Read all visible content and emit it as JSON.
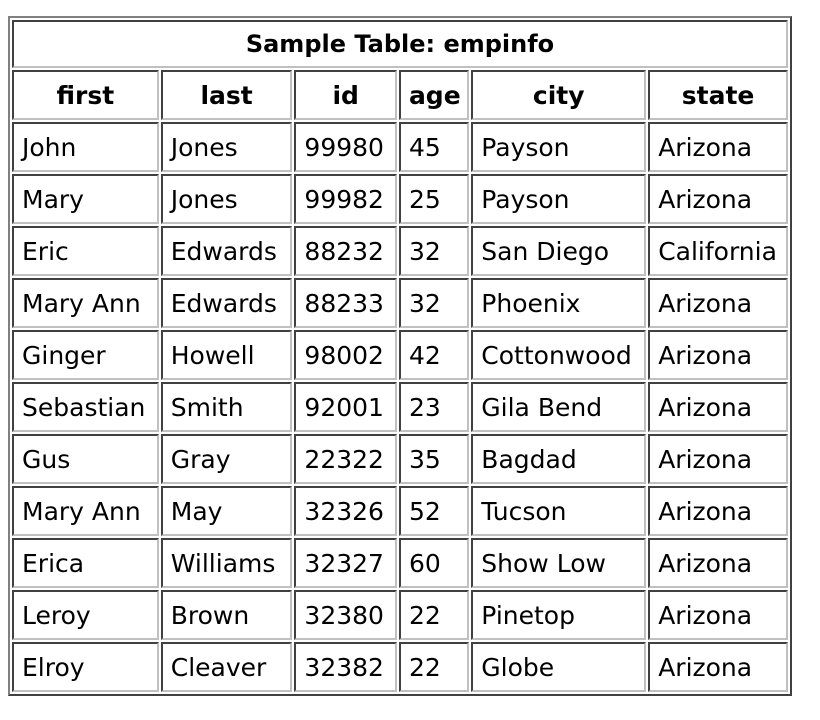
{
  "table": {
    "title": "Sample Table: empinfo",
    "columns": [
      "first",
      "last",
      "id",
      "age",
      "city",
      "state"
    ],
    "rows": [
      [
        "John",
        "Jones",
        "99980",
        "45",
        "Payson",
        "Arizona"
      ],
      [
        "Mary",
        "Jones",
        "99982",
        "25",
        "Payson",
        "Arizona"
      ],
      [
        "Eric",
        "Edwards",
        "88232",
        "32",
        "San Diego",
        "California"
      ],
      [
        "Mary Ann",
        "Edwards",
        "88233",
        "32",
        "Phoenix",
        "Arizona"
      ],
      [
        "Ginger",
        "Howell",
        "98002",
        "42",
        "Cottonwood",
        "Arizona"
      ],
      [
        "Sebastian",
        "Smith",
        "92001",
        "23",
        "Gila Bend",
        "Arizona"
      ],
      [
        "Gus",
        "Gray",
        "22322",
        "35",
        "Bagdad",
        "Arizona"
      ],
      [
        "Mary Ann",
        "May",
        "32326",
        "52",
        "Tucson",
        "Arizona"
      ],
      [
        "Erica",
        "Williams",
        "32327",
        "60",
        "Show Low",
        "Arizona"
      ],
      [
        "Leroy",
        "Brown",
        "32380",
        "22",
        "Pinetop",
        "Arizona"
      ],
      [
        "Elroy",
        "Cleaver",
        "32382",
        "22",
        "Globe",
        "Arizona"
      ]
    ]
  }
}
